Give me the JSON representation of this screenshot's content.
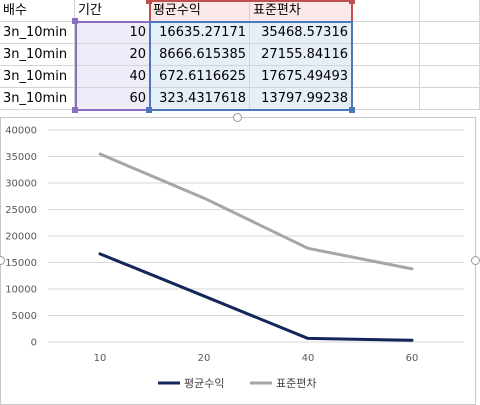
{
  "table": {
    "headers": [
      "배수",
      "기간",
      "평균수익",
      "표준편차"
    ],
    "rows": [
      [
        "3n_10min",
        "10",
        "16635.27171",
        "35468.57316"
      ],
      [
        "3n_10min",
        "20",
        "8666.615385",
        "27155.84116"
      ],
      [
        "3n_10min",
        "40",
        "672.6116625",
        "17675.49493"
      ],
      [
        "3n_10min",
        "60",
        "323.4317618",
        "13797.99238"
      ]
    ]
  },
  "colors": {
    "series_avg": "#14265a",
    "series_std": "#a6a6a6",
    "gridline": "#d9d9d9",
    "range_purple": "#8a6fc0",
    "range_red": "#c0504d",
    "range_blue": "#4a78b8"
  },
  "chart_data": {
    "type": "line",
    "categories": [
      "10",
      "20",
      "40",
      "60"
    ],
    "series": [
      {
        "name": "평균수익",
        "values": [
          16635.27171,
          8666.615385,
          672.6116625,
          323.4317618
        ]
      },
      {
        "name": "표준편차",
        "values": [
          35468.57316,
          27155.84116,
          17675.49493,
          13797.99238
        ]
      }
    ],
    "y_ticks": [
      "0",
      "5000",
      "10000",
      "15000",
      "20000",
      "25000",
      "30000",
      "35000",
      "40000"
    ],
    "ylim": [
      0,
      40000
    ],
    "grid": true,
    "legend_position": "bottom"
  }
}
